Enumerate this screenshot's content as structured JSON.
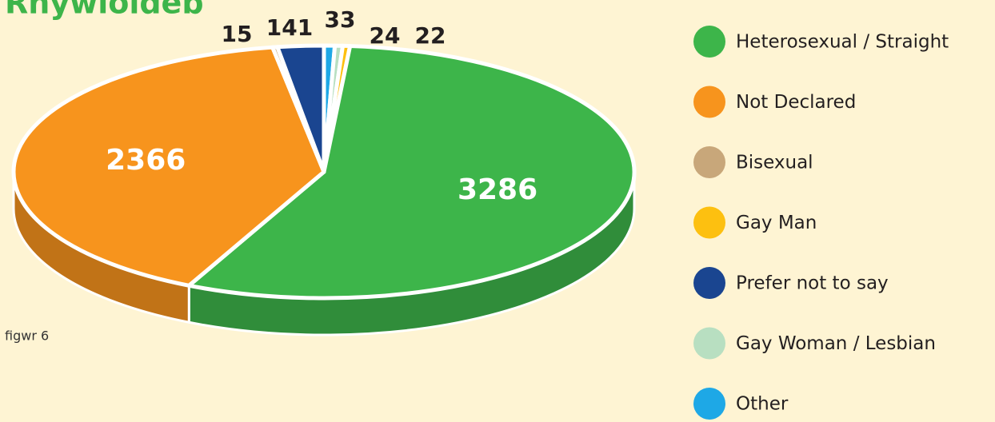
{
  "chart_data": {
    "type": "pie",
    "title": "Rhywioldeb",
    "note": "figwr 6",
    "categories": [
      "Heterosexual / Straight",
      "Not Declared",
      "Bisexual",
      "Gay Man",
      "Prefer not to say",
      "Gay Woman / Lesbian",
      "Other"
    ],
    "values": [
      3286,
      2366,
      15,
      22,
      141,
      24,
      33
    ],
    "colors": [
      "#3db54a",
      "#f7941d",
      "#c8a77a",
      "#fdc010",
      "#1a4590",
      "#b8dfc1",
      "#1ea8e6"
    ],
    "legend": "right"
  }
}
